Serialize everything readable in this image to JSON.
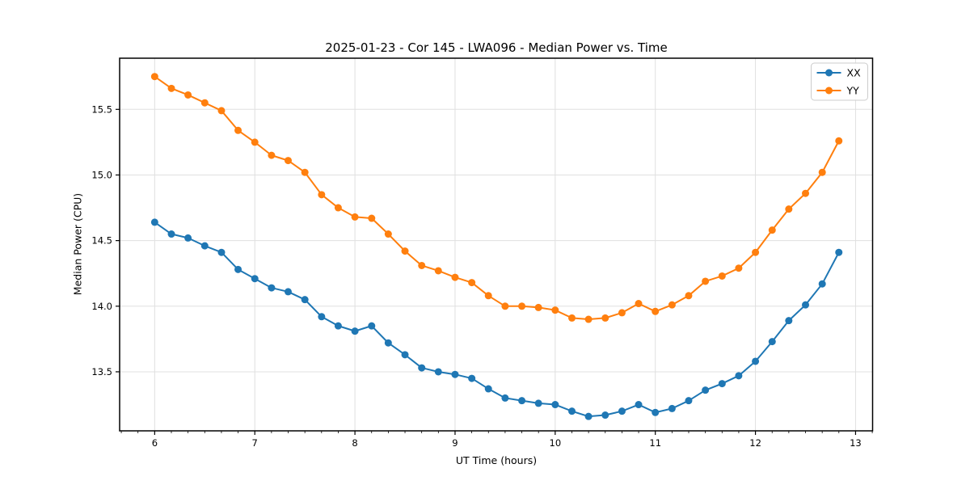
{
  "chart_data": {
    "type": "line",
    "title": "2025-01-23 - Cor 145 - LWA096 - Median Power vs. Time",
    "xlabel": "UT Time (hours)",
    "ylabel": "Median Power (CPU)",
    "xlim": [
      5.65,
      13.17
    ],
    "ylim": [
      13.05,
      15.89
    ],
    "xticks": [
      6,
      7,
      8,
      9,
      10,
      11,
      12,
      13
    ],
    "yticks": [
      13.5,
      14.0,
      14.5,
      15.0,
      15.5
    ],
    "x_minor_tick_step_hours": 0.1667,
    "grid": true,
    "legend_position": "upper-right",
    "background_color": "#ffffff",
    "grid_color": "#e0e0e0",
    "spine_color": "#000000",
    "x": [
      6.0,
      6.167,
      6.333,
      6.5,
      6.667,
      6.833,
      7.0,
      7.167,
      7.333,
      7.5,
      7.667,
      7.833,
      8.0,
      8.167,
      8.333,
      8.5,
      8.667,
      8.833,
      9.0,
      9.167,
      9.333,
      9.5,
      9.667,
      9.833,
      10.0,
      10.167,
      10.333,
      10.5,
      10.667,
      10.833,
      11.0,
      11.167,
      11.333,
      11.5,
      11.667,
      11.833,
      12.0,
      12.167,
      12.333,
      12.5,
      12.667,
      12.833
    ],
    "series": [
      {
        "name": "XX",
        "color": "#1f77b4",
        "marker": "circle",
        "values": [
          14.64,
          14.55,
          14.52,
          14.46,
          14.41,
          14.28,
          14.21,
          14.14,
          14.11,
          14.05,
          13.92,
          13.85,
          13.81,
          13.85,
          13.72,
          13.63,
          13.53,
          13.5,
          13.48,
          13.45,
          13.37,
          13.3,
          13.28,
          13.26,
          13.25,
          13.2,
          13.16,
          13.17,
          13.2,
          13.25,
          13.19,
          13.22,
          13.28,
          13.36,
          13.41,
          13.47,
          13.58,
          13.73,
          13.89,
          14.01,
          14.17,
          14.41
        ]
      },
      {
        "name": "YY",
        "color": "#ff7f0e",
        "marker": "circle",
        "values": [
          15.75,
          15.66,
          15.61,
          15.55,
          15.49,
          15.34,
          15.25,
          15.15,
          15.11,
          15.02,
          14.85,
          14.75,
          14.68,
          14.67,
          14.55,
          14.42,
          14.31,
          14.27,
          14.22,
          14.18,
          14.08,
          14.0,
          14.0,
          13.99,
          13.97,
          13.91,
          13.9,
          13.91,
          13.95,
          14.02,
          13.96,
          14.01,
          14.08,
          14.19,
          14.23,
          14.29,
          14.41,
          14.58,
          14.74,
          14.86,
          15.02,
          15.26
        ]
      }
    ]
  }
}
